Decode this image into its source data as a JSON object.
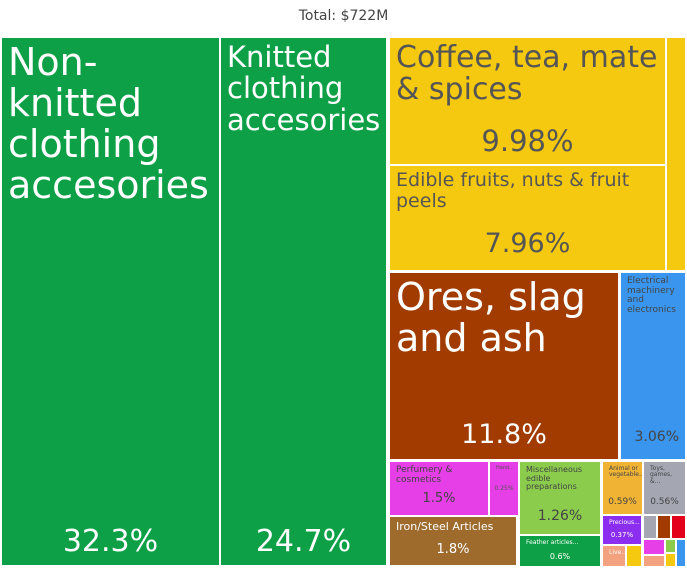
{
  "title": "Total: $722M",
  "chart_data": {
    "type": "treemap",
    "total": "$722M",
    "items": [
      {
        "name": "Non-knitted clothing accesories",
        "share": 32.3,
        "pct_label": "32.3%",
        "color": "#0da046"
      },
      {
        "name": "Knitted clothing accesories",
        "share": 24.7,
        "pct_label": "24.7%",
        "color": "#0da046"
      },
      {
        "name": "Coffee, tea, mate & spices",
        "share": 9.98,
        "pct_label": "9.98%",
        "color": "#f5c90f"
      },
      {
        "name": "Edible fruits, nuts & fruit peels",
        "share": 7.96,
        "pct_label": "7.96%",
        "color": "#f5c90f"
      },
      {
        "name": "Ores, slag and ash",
        "share": 11.8,
        "pct_label": "11.8%",
        "color": "#a13b00"
      },
      {
        "name": "Electrical machinery and electronics",
        "share": 3.06,
        "pct_label": "3.06%",
        "color": "#3a95ef"
      },
      {
        "name": "Perfumery & cosmetics",
        "share": 1.5,
        "pct_label": "1.5%",
        "color": "#e63fe7"
      },
      {
        "name": "Iron/Steel Articles",
        "share": 1.8,
        "pct_label": "1.8%",
        "color": "#9e6b2d"
      },
      {
        "name": "Miscellaneous edible preparations",
        "share": 1.26,
        "pct_label": "1.26%",
        "color": "#8bcc4d"
      },
      {
        "name": "Feather articles...",
        "share": 0.6,
        "pct_label": "0.6%",
        "color": "#0da046"
      },
      {
        "name": "Animal or vegetable...",
        "share": 0.59,
        "pct_label": "0.59%",
        "color": "#f0b334"
      },
      {
        "name": "Toys, games, &...",
        "share": 0.56,
        "pct_label": "0.56%",
        "color": "#a4a6b2"
      },
      {
        "name": "Precious...",
        "share": 0.37,
        "pct_label": "0.37%",
        "color": "#8b2ef0"
      },
      {
        "name": "Hand...",
        "share": 0.25,
        "pct_label": "0.25%",
        "color": "#e63fe7"
      },
      {
        "name": "Live...",
        "share": null,
        "pct_label": "",
        "color": "#f2a27e"
      }
    ]
  }
}
